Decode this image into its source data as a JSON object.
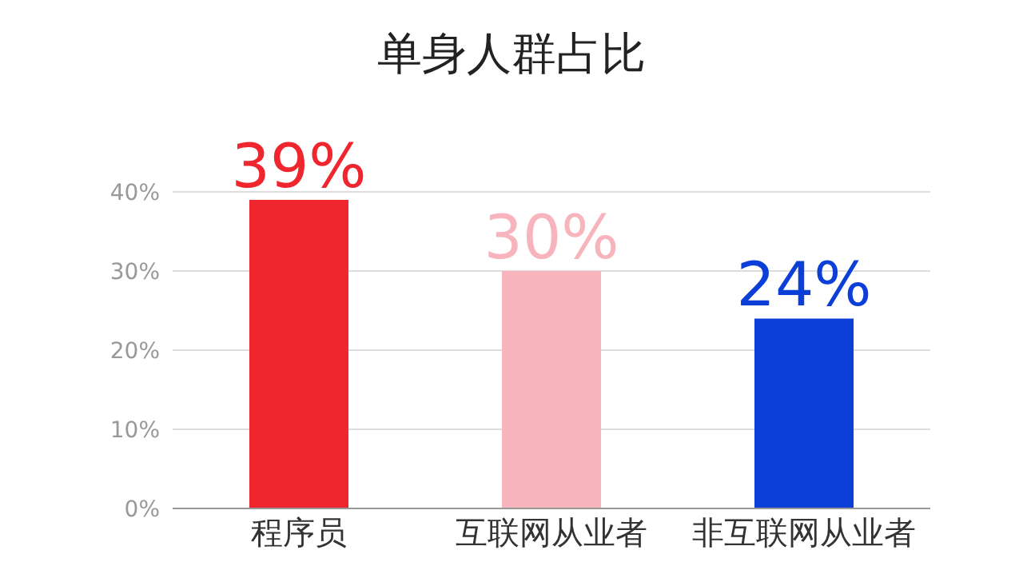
{
  "chart_data": {
    "type": "bar",
    "title": "单身人群占比",
    "categories": [
      "程序员",
      "互联网从业者",
      "非互联网从业者"
    ],
    "values": [
      39,
      30,
      24
    ],
    "value_labels": [
      "39%",
      "30%",
      "24%"
    ],
    "colors": [
      "#f0262e",
      "#f7b4bc",
      "#0b3fd8"
    ],
    "ylim": [
      0,
      40
    ],
    "yticks": [
      {
        "value": 0,
        "label": "0%"
      },
      {
        "value": 10,
        "label": "10%"
      },
      {
        "value": 20,
        "label": "20%"
      },
      {
        "value": 30,
        "label": "30%"
      },
      {
        "value": 40,
        "label": "40%"
      }
    ],
    "grid": "y"
  }
}
